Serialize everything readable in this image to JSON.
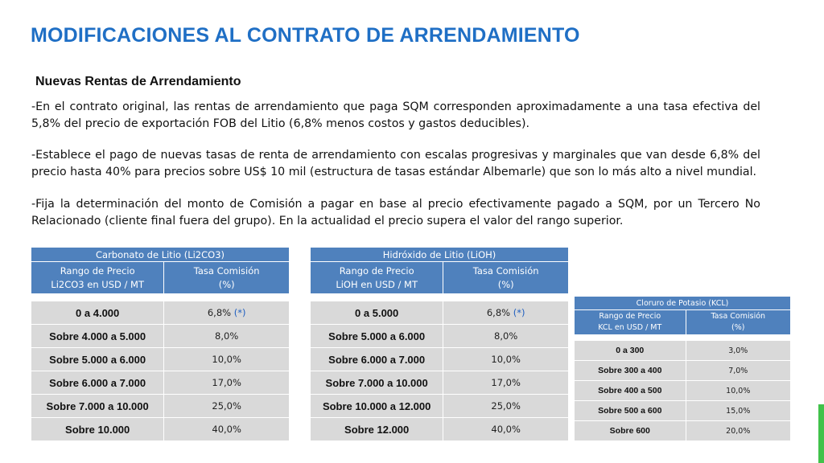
{
  "title": "MODIFICACIONES AL CONTRATO DE ARRENDAMIENTO",
  "subtitle": "Nuevas Rentas de Arrendamiento",
  "paragraphs": [
    "-En el contrato original, las rentas de arrendamiento que paga SQM corresponden aproximadamente a una tasa efectiva del 5,8% del precio de exportación FOB del Litio (6,8% menos costos y gastos deducibles).",
    "-Establece el pago de nuevas tasas de renta de arrendamiento con escalas progresivas y marginales que van desde 6,8% del precio hasta 40% para precios sobre US$ 10 mil (estructura de tasas estándar Albemarle) que son lo más alto a nivel mundial.",
    "-Fija la determinación del monto de Comisión a pagar en base al precio efectivamente pagado a SQM, por un Tercero No Relacionado (cliente final fuera del grupo). En la actualidad el precio supera el valor del rango superior."
  ],
  "tables": {
    "carbonato": {
      "title": "Carbonato de Litio (Li2CO3)",
      "col1_line1": "Rango de Precio",
      "col1_line2": "Li2CO3 en USD / MT",
      "col2_line1": "Tasa Comisión",
      "col2_line2": "(%)",
      "rows": [
        {
          "range": "0 a 4.000",
          "rate": "6,8%",
          "note": "(*)"
        },
        {
          "range": "Sobre 4.000 a 5.000",
          "rate": "8,0%"
        },
        {
          "range": "Sobre 5.000 a 6.000",
          "rate": "10,0%"
        },
        {
          "range": "Sobre 6.000 a 7.000",
          "rate": "17,0%"
        },
        {
          "range": "Sobre 7.000 a 10.000",
          "rate": "25,0%"
        },
        {
          "range": "Sobre 10.000",
          "rate": "40,0%"
        }
      ]
    },
    "hidroxido": {
      "title": "Hidróxido de Litio (LiOH)",
      "col1_line1": "Rango de Precio",
      "col1_line2": "LiOH en USD / MT",
      "col2_line1": "Tasa Comisión",
      "col2_line2": "(%)",
      "rows": [
        {
          "range": "0 a 5.000",
          "rate": "6,8%",
          "note": "(*)"
        },
        {
          "range": "Sobre 5.000 a 6.000",
          "rate": "8,0%"
        },
        {
          "range": "Sobre 6.000 a 7.000",
          "rate": "10,0%"
        },
        {
          "range": "Sobre 7.000 a 10.000",
          "rate": "17,0%"
        },
        {
          "range": "Sobre 10.000 a 12.000",
          "rate": "25,0%"
        },
        {
          "range": "Sobre 12.000",
          "rate": "40,0%"
        }
      ]
    },
    "cloruro": {
      "title": "Cloruro de Potasio (KCL)",
      "col1_line1": "Rango de Precio",
      "col1_line2": "KCL en USD / MT",
      "col2_line1": "Tasa Comisión",
      "col2_line2": "(%)",
      "rows": [
        {
          "range": "0 a 300",
          "rate": "3,0%"
        },
        {
          "range": "Sobre 300 a 400",
          "rate": "7,0%"
        },
        {
          "range": "Sobre 400 a 500",
          "rate": "10,0%"
        },
        {
          "range": "Sobre 500 a 600",
          "rate": "15,0%"
        },
        {
          "range": "Sobre 600",
          "rate": "20,0%"
        }
      ]
    }
  },
  "colors": {
    "title": "#1f6fc5",
    "table_header": "#4f81bd",
    "table_row": "#d9d9d9",
    "note": "#1f5fc0",
    "accent_bar": "#41c24a"
  }
}
